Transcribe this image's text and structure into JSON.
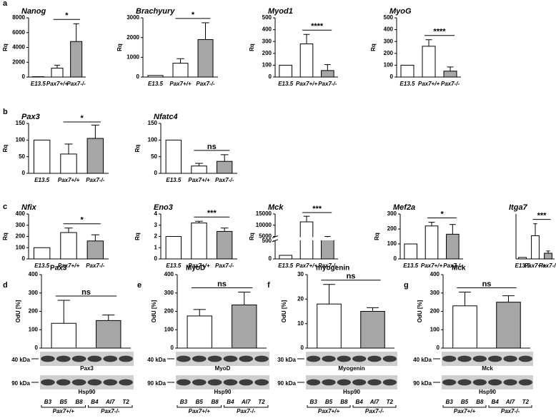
{
  "chart_data": [
    {
      "type": "bar",
      "panel": "a",
      "title": "Nanog",
      "ylabel": "Rq",
      "categories": [
        "E13.5",
        "Pax7+/+",
        "Pax7-/-"
      ],
      "values": [
        50,
        1200,
        4800
      ],
      "errors": [
        0,
        400,
        2400
      ],
      "colors": [
        "#ffffff",
        "#ffffff",
        "#a6a6a6"
      ],
      "ylim": [
        0,
        8000
      ],
      "yticks": [
        0,
        2000,
        4000,
        6000,
        8000
      ],
      "significance": "*"
    },
    {
      "type": "bar",
      "title": "Brachyury",
      "ylabel": "Rq",
      "categories": [
        "E13.5",
        "Pax7+/+",
        "Pax7-/-"
      ],
      "values": [
        80,
        700,
        1900
      ],
      "errors": [
        0,
        230,
        850
      ],
      "colors": [
        "#ffffff",
        "#ffffff",
        "#a6a6a6"
      ],
      "ylim": [
        0,
        3000
      ],
      "yticks": [
        0,
        1000,
        2000,
        3000
      ],
      "significance": "*"
    },
    {
      "type": "bar",
      "title": "Myod1",
      "ylabel": "Rq",
      "categories": [
        "E13.5",
        "Pax7+/+",
        "Pax7-/-"
      ],
      "values": [
        100,
        280,
        55
      ],
      "errors": [
        0,
        80,
        50
      ],
      "colors": [
        "#ffffff",
        "#ffffff",
        "#a6a6a6"
      ],
      "ylim": [
        0,
        500
      ],
      "yticks": [
        0,
        100,
        200,
        300,
        400,
        500
      ],
      "significance": "****"
    },
    {
      "type": "bar",
      "title": "MyoG",
      "ylabel": "Rq",
      "categories": [
        "E13.5",
        "Pax7+/+",
        "Pax7-/-"
      ],
      "values": [
        100,
        260,
        50
      ],
      "errors": [
        0,
        55,
        35
      ],
      "colors": [
        "#ffffff",
        "#ffffff",
        "#a6a6a6"
      ],
      "ylim": [
        0,
        500
      ],
      "yticks": [
        0,
        100,
        200,
        300,
        400,
        500
      ],
      "significance": "****"
    },
    {
      "type": "bar",
      "panel": "b",
      "title": "Pax3",
      "ylabel": "Rq",
      "categories": [
        "E13.5",
        "Pax7+/+",
        "Pax7-/-"
      ],
      "values": [
        100,
        58,
        105
      ],
      "errors": [
        0,
        30,
        40
      ],
      "colors": [
        "#ffffff",
        "#ffffff",
        "#a6a6a6"
      ],
      "ylim": [
        0,
        150
      ],
      "yticks": [
        0,
        50,
        100,
        150
      ],
      "significance": "*"
    },
    {
      "type": "bar",
      "title": "Nfatc4",
      "ylabel": "Rq",
      "categories": [
        "E13.5",
        "Pax7+/+",
        "Pax7-/-"
      ],
      "values": [
        100,
        22,
        36
      ],
      "errors": [
        0,
        8,
        20
      ],
      "colors": [
        "#ffffff",
        "#ffffff",
        "#a6a6a6"
      ],
      "ylim": [
        0,
        150
      ],
      "yticks": [
        0,
        50,
        100,
        150
      ],
      "significance": "ns"
    },
    {
      "type": "bar",
      "panel": "c",
      "title": "Nfix",
      "ylabel": "Rq",
      "categories": [
        "E13.5",
        "Pax7+/+",
        "Pax7-/-"
      ],
      "values": [
        100,
        235,
        160
      ],
      "errors": [
        0,
        40,
        55
      ],
      "colors": [
        "#ffffff",
        "#ffffff",
        "#a6a6a6"
      ],
      "ylim": [
        0,
        400
      ],
      "yticks": [
        0,
        100,
        200,
        300,
        400
      ],
      "significance": "*"
    },
    {
      "type": "bar",
      "title": "Eno3",
      "ylabel": "Rq",
      "categories": [
        "E13.5",
        "Pax7+/+",
        "Pax7-/-"
      ],
      "values": [
        2.0,
        3.2,
        2.45
      ],
      "errors": [
        0,
        0.15,
        0.3
      ],
      "colors": [
        "#ffffff",
        "#ffffff",
        "#a6a6a6"
      ],
      "ylim": [
        0,
        4
      ],
      "yticks": [
        0,
        1,
        2,
        3,
        4
      ],
      "significance": "***"
    },
    {
      "type": "bar",
      "title": "Mck",
      "ylabel": "Rq",
      "categories": [
        "E13.5",
        "Pax7+/+",
        "Pax7-/-"
      ],
      "values": [
        100,
        11500,
        3500
      ],
      "errors": [
        0,
        2500,
        1500
      ],
      "colors": [
        "#ffffff",
        "#ffffff",
        "#a6a6a6"
      ],
      "ylim": [
        0,
        15000
      ],
      "ybreak": [
        500,
        5000
      ],
      "yticks": [
        0,
        500,
        5000,
        10000,
        15000
      ],
      "significance": "***"
    },
    {
      "type": "bar",
      "title": "Mef2a",
      "ylabel": "Rq",
      "categories": [
        "E13.5",
        "Pax7+/+",
        "Pax7-/-"
      ],
      "values": [
        100,
        220,
        165
      ],
      "errors": [
        0,
        25,
        65
      ],
      "colors": [
        "#ffffff",
        "#ffffff",
        "#a6a6a6"
      ],
      "ylim": [
        0,
        300
      ],
      "yticks": [
        0,
        100,
        200,
        300
      ],
      "significance": "*"
    },
    {
      "type": "bar",
      "title": "Itga7",
      "categories": [
        "E13.5",
        "Pax7+/+",
        "Pax7-/-"
      ],
      "values": [
        100,
        1550,
        380
      ],
      "errors": [
        0,
        800,
        150
      ],
      "colors": [
        "#ffffff",
        "#ffffff",
        "#a6a6a6"
      ],
      "ylim": [
        0,
        3000
      ],
      "significance": "***"
    },
    {
      "type": "blot",
      "panel": "d",
      "title": "Pax3",
      "ylabel": "OdU [%]",
      "values": [
        135,
        150
      ],
      "errors": [
        125,
        30
      ],
      "colors": [
        "#ffffff",
        "#a6a6a6"
      ],
      "ylim": [
        0,
        400
      ],
      "yticks": [
        0,
        100,
        200,
        300,
        400
      ],
      "significance": "ns",
      "bands": [
        {
          "size": "40 kDa",
          "name": "Pax3"
        },
        {
          "size": "90 kDa",
          "name": "Hsp90"
        }
      ],
      "lanes": [
        "B3",
        "B5",
        "B8",
        "B4",
        "AI7",
        "T2"
      ],
      "groups": [
        "Pax7+/+",
        "Pax7-/-"
      ]
    },
    {
      "type": "blot",
      "panel": "e",
      "title": "MyoD",
      "ylabel": "OdU [%]",
      "values": [
        175,
        235
      ],
      "errors": [
        35,
        70
      ],
      "colors": [
        "#ffffff",
        "#a6a6a6"
      ],
      "ylim": [
        0,
        400
      ],
      "yticks": [
        0,
        100,
        200,
        300,
        400
      ],
      "significance": "ns",
      "bands": [
        {
          "size": "40 kDa",
          "name": "MyoD"
        },
        {
          "size": "90 kDa",
          "name": "Hsp90"
        }
      ],
      "lanes": [
        "B3",
        "B5",
        "B8",
        "B4",
        "AI7",
        "T2"
      ],
      "groups": [
        "Pax7+/+",
        "Pax7-/-"
      ]
    },
    {
      "type": "blot",
      "panel": "f",
      "title": "myogenin",
      "ylabel": "OdU [%]",
      "values": [
        18,
        15
      ],
      "errors": [
        8,
        1.5
      ],
      "colors": [
        "#ffffff",
        "#a6a6a6"
      ],
      "ylim": [
        0,
        30
      ],
      "yticks": [
        0,
        10,
        20,
        30
      ],
      "significance": "ns",
      "bands": [
        {
          "size": "30 kDa",
          "name": "Myogenin"
        },
        {
          "size": "90 kDa",
          "name": "Hsp90"
        }
      ],
      "lanes": [
        "B3",
        "B5",
        "B8",
        "B4",
        "AI7",
        "T2"
      ],
      "groups": [
        "Pax7+/+",
        "Pax7-/-"
      ]
    },
    {
      "type": "blot",
      "panel": "g",
      "title": "Mck",
      "ylabel": "OdU [%]",
      "values": [
        230,
        250
      ],
      "errors": [
        75,
        35
      ],
      "colors": [
        "#ffffff",
        "#a6a6a6"
      ],
      "ylim": [
        0,
        400
      ],
      "yticks": [
        0,
        100,
        200,
        300,
        400
      ],
      "significance": "ns",
      "bands": [
        {
          "size": "40 kDa",
          "name": "Mck"
        },
        {
          "size": "90 kDa",
          "name": "Hsp90"
        }
      ],
      "lanes": [
        "B3",
        "B5",
        "B8",
        "B4",
        "AI7",
        "T2"
      ],
      "groups": [
        "Pax7+/+",
        "Pax7-/-"
      ]
    }
  ]
}
